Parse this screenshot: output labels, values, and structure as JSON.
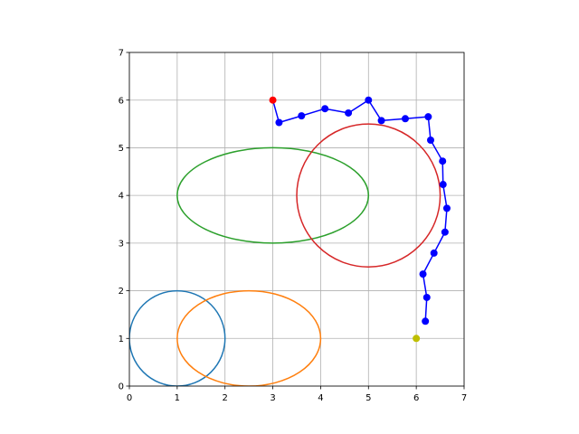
{
  "chart_data": {
    "type": "scatter",
    "title": "",
    "xlabel": "",
    "ylabel": "",
    "xlim": [
      0,
      7
    ],
    "ylim": [
      0,
      7
    ],
    "aspect": "equal",
    "grid": true,
    "legend": "none",
    "x_ticks": [
      "0",
      "1",
      "2",
      "3",
      "4",
      "5",
      "6",
      "7"
    ],
    "y_ticks": [
      "0",
      "1",
      "2",
      "3",
      "4",
      "5",
      "6",
      "7"
    ],
    "ellipses": [
      {
        "cx": 1.0,
        "cy": 1.0,
        "rx": 1.0,
        "ry": 1.0,
        "color": "#1f77b4"
      },
      {
        "cx": 2.5,
        "cy": 1.0,
        "rx": 1.5,
        "ry": 1.0,
        "color": "#ff7f0e"
      },
      {
        "cx": 3.0,
        "cy": 4.0,
        "rx": 2.0,
        "ry": 1.0,
        "color": "#2ca02c"
      },
      {
        "cx": 5.0,
        "cy": 4.0,
        "rx": 1.5,
        "ry": 1.5,
        "color": "#d62728"
      }
    ],
    "path": {
      "color": "#0000ff",
      "points": [
        [
          3.0,
          6.0
        ],
        [
          3.13,
          5.53
        ],
        [
          3.6,
          5.67
        ],
        [
          4.09,
          5.82
        ],
        [
          4.58,
          5.73
        ],
        [
          5.0,
          6.0
        ],
        [
          5.27,
          5.57
        ],
        [
          5.77,
          5.61
        ],
        [
          6.25,
          5.65
        ],
        [
          6.3,
          5.16
        ],
        [
          6.55,
          4.72
        ],
        [
          6.56,
          4.23
        ],
        [
          6.64,
          3.73
        ],
        [
          6.6,
          3.23
        ],
        [
          6.37,
          2.79
        ],
        [
          6.14,
          2.35
        ],
        [
          6.22,
          1.86
        ],
        [
          6.19,
          1.36
        ]
      ],
      "marker_count": 17
    },
    "start_point": {
      "x": 3.0,
      "y": 6.0,
      "color": "#ff0000"
    },
    "goal_point": {
      "x": 6.0,
      "y": 1.0,
      "color": "#bfbf00"
    }
  }
}
